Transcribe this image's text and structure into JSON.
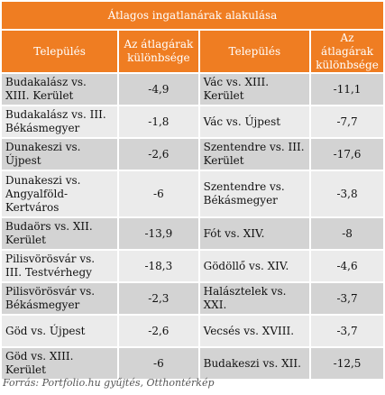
{
  "title": "Átlagos ingatlanárak alakulása",
  "headers": {
    "col1": "Település",
    "col2": "Az átlagárak különbsége",
    "col3": "Település",
    "col4": "Az átlagárak különbsége"
  },
  "rows": [
    {
      "left_name": "Budakalász vs. XIII. Kerület",
      "left_value": "-4,9",
      "right_name": "Vác vs. XIII. Kerület",
      "right_value": "-11,1"
    },
    {
      "left_name": "Budakalász vs. III. Békásmegyer",
      "left_value": "-1,8",
      "right_name": "Vác vs. Újpest",
      "right_value": "-7,7"
    },
    {
      "left_name": "Dunakeszi vs. Újpest",
      "left_value": "-2,6",
      "right_name": "Szentendre vs. III. Kerület",
      "right_value": "-17,6"
    },
    {
      "left_name": "Dunakeszi vs. Angyalföld-Kertváros",
      "left_value": "-6",
      "right_name": "Szentendre vs. Békásmegyer",
      "right_value": "-3,8"
    },
    {
      "left_name": "Budaörs vs. XII. Kerület",
      "left_value": "-13,9",
      "right_name": "Fót vs. XIV.",
      "right_value": "-8"
    },
    {
      "left_name": "Pilisvörösvár vs. III. Testvérhegy",
      "left_value": "-18,3",
      "right_name": "Gödöllő vs. XIV.",
      "right_value": "-4,6"
    },
    {
      "left_name": "Pilisvörösvár vs. Békásmegyer",
      "left_value": "-2,3",
      "right_name": "Halásztelek vs. XXI.",
      "right_value": "-3,7"
    },
    {
      "left_name": "Göd vs. Újpest",
      "left_value": "-2,6",
      "right_name": "Vecsés vs. XVIII.",
      "right_value": "-3,7"
    },
    {
      "left_name": "Göd vs. XIII. Kerület",
      "left_value": "-6",
      "right_name": "Budakeszi vs. XII.",
      "right_value": "-12,5"
    }
  ],
  "source": "Forrás: Portfolio.hu gyűjtés, Otthontérkép",
  "colors": {
    "header": "#ef7d22",
    "row_dark": "#d3d3d3",
    "row_light": "#ebebeb"
  }
}
